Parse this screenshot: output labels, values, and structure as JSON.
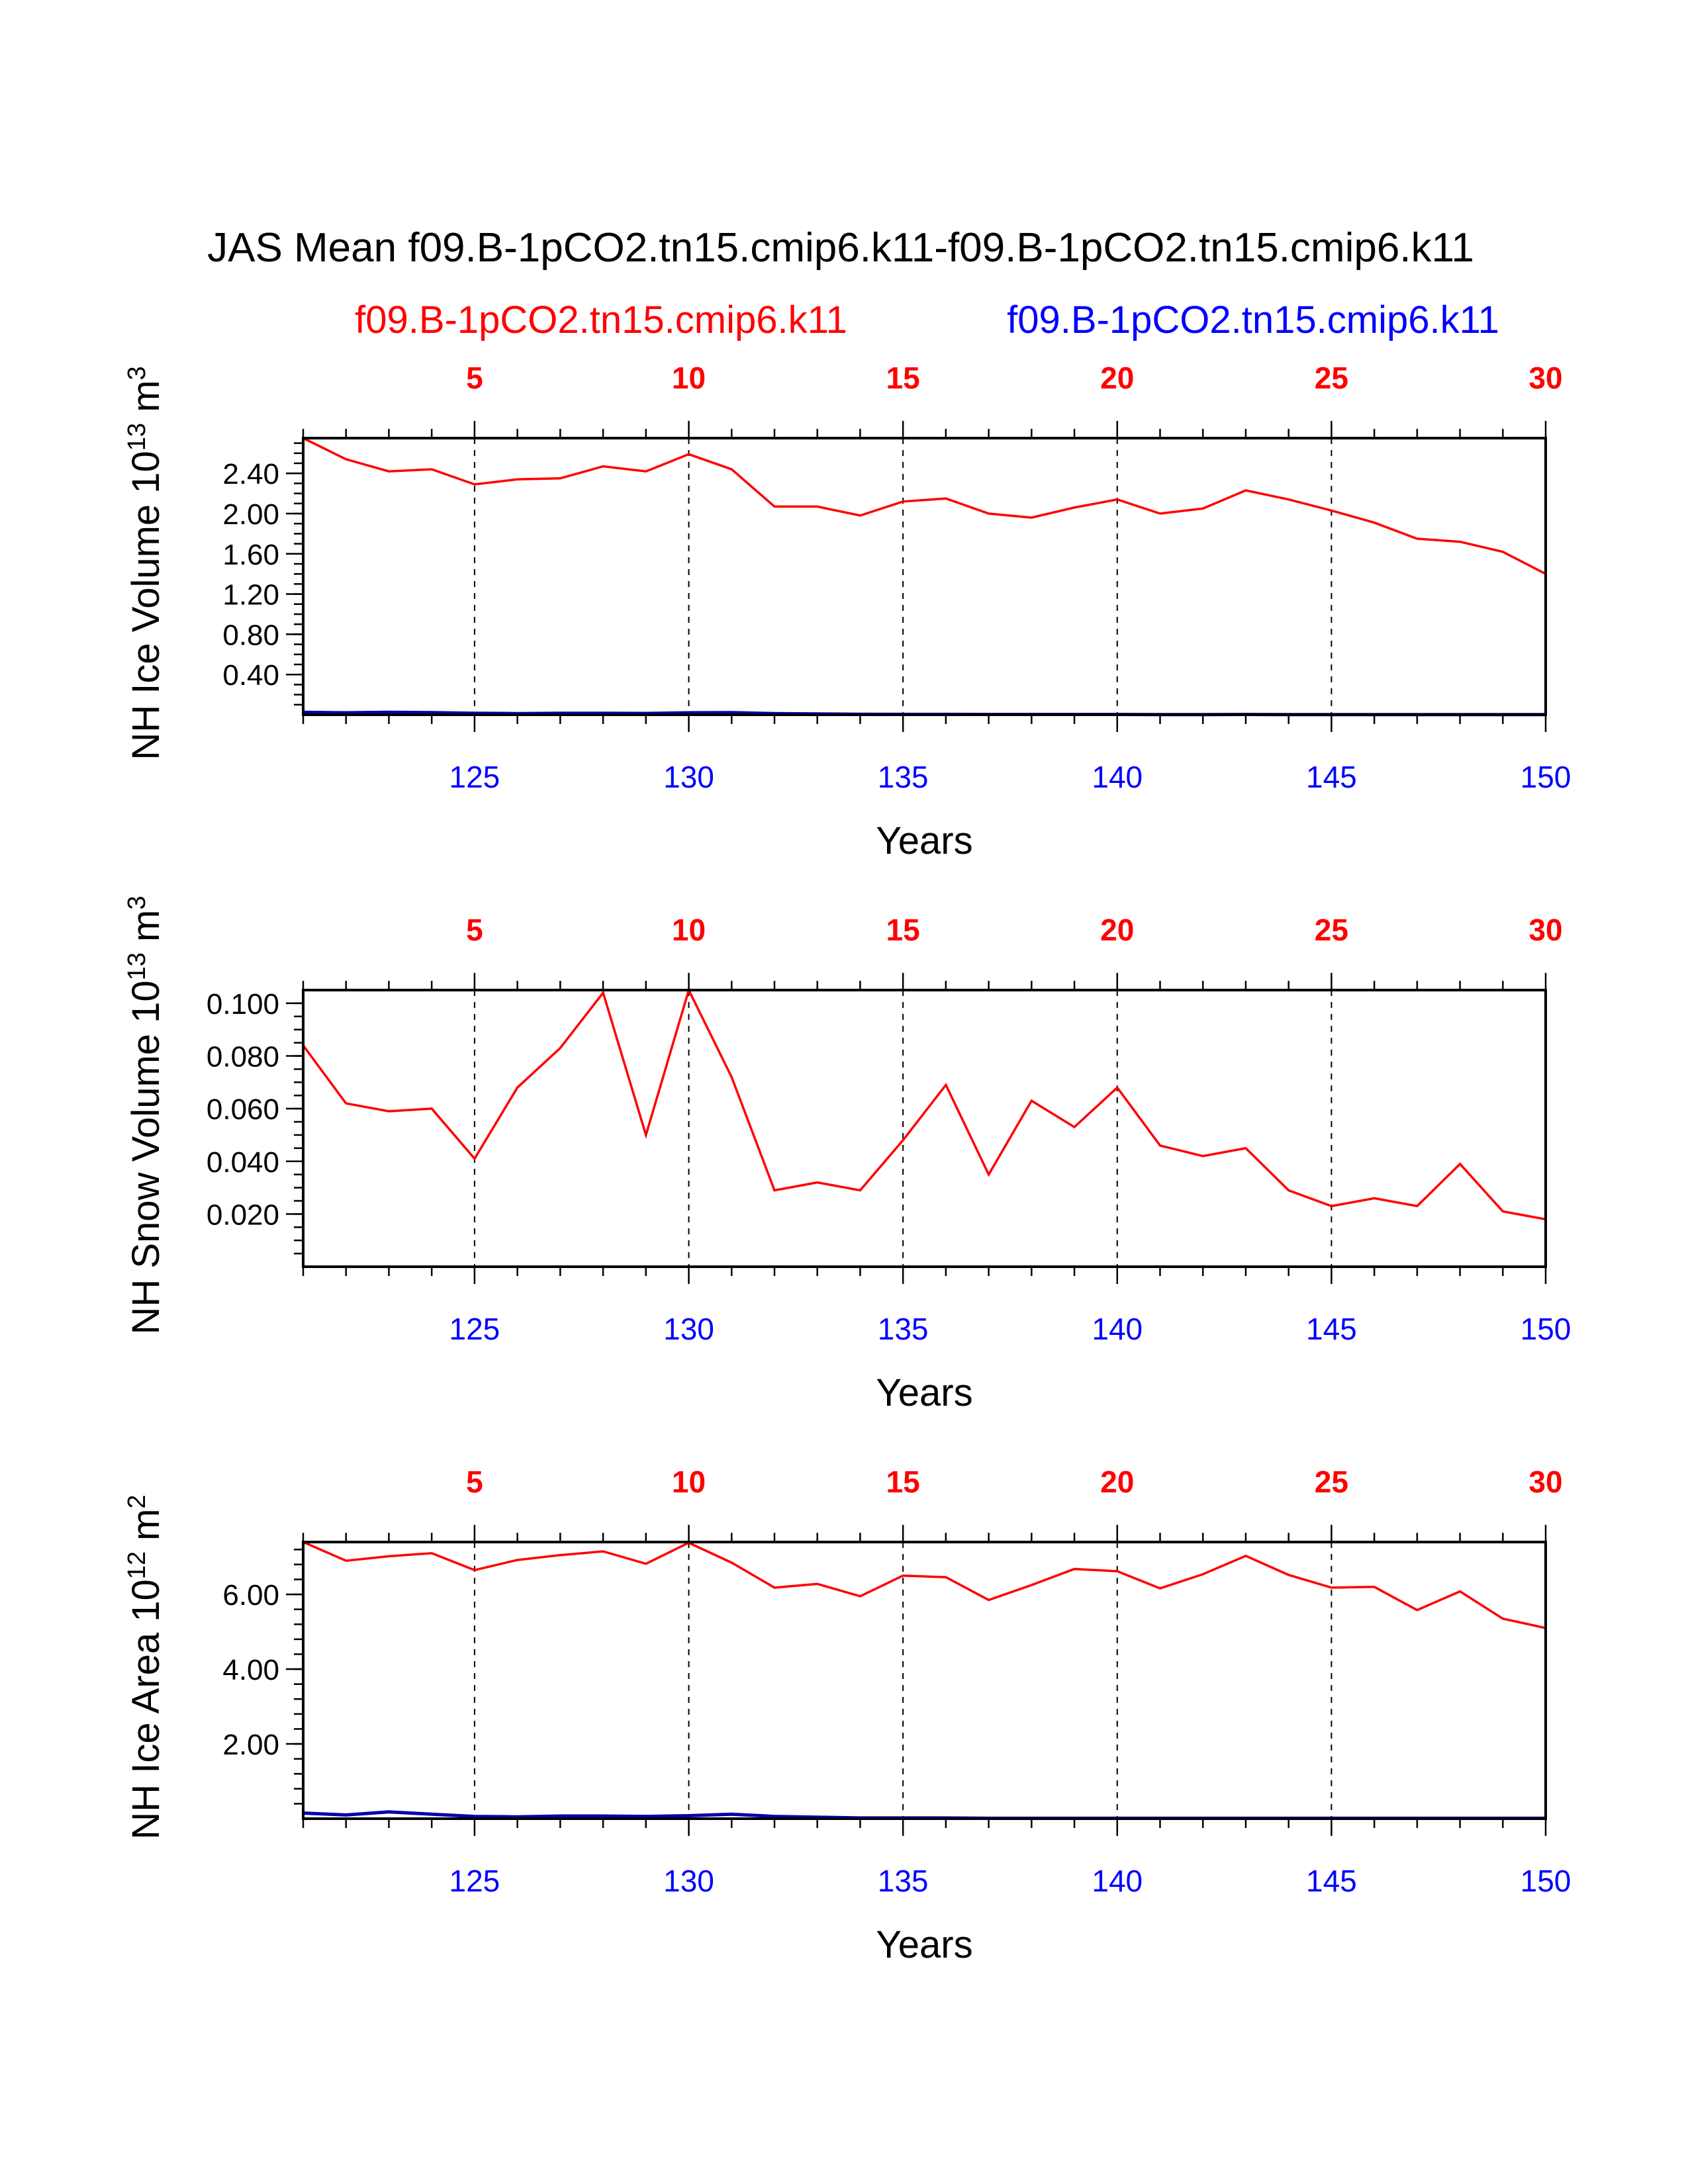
{
  "title": "JAS Mean f09.B-1pCO2.tn15.cmip6.k11-f09.B-1pCO2.tn15.cmip6.k11",
  "legend": {
    "left_label": "f09.B-1pCO2.tn15.cmip6.k11",
    "right_label": "f09.B-1pCO2.tn15.cmip6.k11",
    "left_color": "#ff0000",
    "right_color": "#0000ff"
  },
  "colors": {
    "case_a": "#ff0000",
    "case_b": "#0000b0",
    "axis": "#000000"
  },
  "chart_data": [
    {
      "type": "line",
      "ylabel_main": "NH Ice Volume 10",
      "ylabel_exp": "13",
      "ylabel_unit": " m",
      "ylabel_unit_exp": "3",
      "xlabel": "Years",
      "x_bottom": [
        121,
        122,
        123,
        124,
        125,
        126,
        127,
        128,
        129,
        130,
        131,
        132,
        133,
        134,
        135,
        136,
        137,
        138,
        139,
        140,
        141,
        142,
        143,
        144,
        145,
        146,
        147,
        148,
        149,
        150
      ],
      "x_top": [
        1,
        2,
        3,
        4,
        5,
        6,
        7,
        8,
        9,
        10,
        11,
        12,
        13,
        14,
        15,
        16,
        17,
        18,
        19,
        20,
        21,
        22,
        23,
        24,
        25,
        26,
        27,
        28,
        29,
        30
      ],
      "bottom_ticks": [
        "125",
        "130",
        "135",
        "140",
        "145",
        "150"
      ],
      "top_ticks": [
        "5",
        "10",
        "15",
        "20",
        "25",
        "30"
      ],
      "ylim": [
        0.0,
        2.75
      ],
      "y_major": [
        0.4,
        0.8,
        1.2,
        1.6,
        2.0,
        2.4
      ],
      "y_tick_labels": [
        "0.40",
        "0.80",
        "1.20",
        "1.60",
        "2.00",
        "2.40"
      ],
      "y_minor_step": 0.1,
      "series": [
        {
          "name": "f09.B-1pCO2.tn15.cmip6.k11",
          "color": "#ff0000",
          "values": [
            2.75,
            2.54,
            2.42,
            2.44,
            2.29,
            2.34,
            2.35,
            2.47,
            2.42,
            2.59,
            2.44,
            2.07,
            2.07,
            1.98,
            2.12,
            2.15,
            2.0,
            1.96,
            2.06,
            2.14,
            2.0,
            2.05,
            2.23,
            2.14,
            2.03,
            1.91,
            1.75,
            1.72,
            1.62,
            1.4
          ]
        },
        {
          "name": "f09.B-1pCO2.tn15.cmip6.k11",
          "color": "#0000b0",
          "values": [
            0.025,
            0.02,
            0.025,
            0.022,
            0.015,
            0.012,
            0.015,
            0.015,
            0.013,
            0.02,
            0.022,
            0.012,
            0.008,
            0.005,
            0.004,
            0.004,
            0.003,
            0.003,
            0.003,
            0.003,
            0.002,
            0.002,
            0.003,
            0.002,
            0.002,
            0.002,
            0.002,
            0.002,
            0.002,
            0.002
          ]
        }
      ]
    },
    {
      "type": "line",
      "ylabel_main": "NH Snow Volume 10",
      "ylabel_exp": "13",
      "ylabel_unit": " m",
      "ylabel_unit_exp": "3",
      "xlabel": "Years",
      "x_bottom": [
        121,
        122,
        123,
        124,
        125,
        126,
        127,
        128,
        129,
        130,
        131,
        132,
        133,
        134,
        135,
        136,
        137,
        138,
        139,
        140,
        141,
        142,
        143,
        144,
        145,
        146,
        147,
        148,
        149,
        150
      ],
      "x_top": [
        1,
        2,
        3,
        4,
        5,
        6,
        7,
        8,
        9,
        10,
        11,
        12,
        13,
        14,
        15,
        16,
        17,
        18,
        19,
        20,
        21,
        22,
        23,
        24,
        25,
        26,
        27,
        28,
        29,
        30
      ],
      "bottom_ticks": [
        "125",
        "130",
        "135",
        "140",
        "145",
        "150"
      ],
      "top_ticks": [
        "5",
        "10",
        "15",
        "20",
        "25",
        "30"
      ],
      "ylim": [
        0.0,
        0.105
      ],
      "y_major": [
        0.02,
        0.04,
        0.06,
        0.08,
        0.1
      ],
      "y_tick_labels": [
        "0.020",
        "0.040",
        "0.060",
        "0.080",
        "0.100"
      ],
      "y_minor_step": 0.005,
      "series": [
        {
          "name": "f09.B-1pCO2.tn15.cmip6.k11",
          "color": "#ff0000",
          "values": [
            0.084,
            0.062,
            0.059,
            0.06,
            0.041,
            0.068,
            0.083,
            0.104,
            0.05,
            0.105,
            0.072,
            0.029,
            0.032,
            0.029,
            0.048,
            0.069,
            0.035,
            0.063,
            0.053,
            0.068,
            0.046,
            0.042,
            0.045,
            0.029,
            0.023,
            0.026,
            0.023,
            0.039,
            0.021,
            0.018
          ]
        }
      ]
    },
    {
      "type": "line",
      "ylabel_main": "NH Ice Area 10",
      "ylabel_exp": "12",
      "ylabel_unit": " m",
      "ylabel_unit_exp": "2",
      "xlabel": "Years",
      "x_bottom": [
        121,
        122,
        123,
        124,
        125,
        126,
        127,
        128,
        129,
        130,
        131,
        132,
        133,
        134,
        135,
        136,
        137,
        138,
        139,
        140,
        141,
        142,
        143,
        144,
        145,
        146,
        147,
        148,
        149,
        150
      ],
      "x_top": [
        1,
        2,
        3,
        4,
        5,
        6,
        7,
        8,
        9,
        10,
        11,
        12,
        13,
        14,
        15,
        16,
        17,
        18,
        19,
        20,
        21,
        22,
        23,
        24,
        25,
        26,
        27,
        28,
        29,
        30
      ],
      "bottom_ticks": [
        "125",
        "130",
        "135",
        "140",
        "145",
        "150"
      ],
      "top_ticks": [
        "5",
        "10",
        "15",
        "20",
        "25",
        "30"
      ],
      "ylim": [
        0.0,
        7.4
      ],
      "y_major": [
        2.0,
        4.0,
        6.0
      ],
      "y_tick_labels": [
        "2.00",
        "4.00",
        "6.00"
      ],
      "y_minor_step": 0.4,
      "series": [
        {
          "name": "f09.B-1pCO2.tn15.cmip6.k11",
          "color": "#ff0000",
          "values": [
            7.4,
            6.9,
            7.02,
            7.1,
            6.65,
            6.92,
            7.05,
            7.15,
            6.82,
            7.38,
            6.85,
            6.18,
            6.28,
            5.95,
            6.5,
            6.46,
            5.85,
            6.25,
            6.68,
            6.62,
            6.16,
            6.54,
            7.03,
            6.52,
            6.18,
            6.2,
            5.58,
            6.08,
            5.35,
            5.1
          ]
        },
        {
          "name": "f09.B-1pCO2.tn15.cmip6.k11",
          "color": "#0000b0",
          "values": [
            0.15,
            0.1,
            0.18,
            0.12,
            0.06,
            0.05,
            0.07,
            0.07,
            0.06,
            0.08,
            0.12,
            0.06,
            0.04,
            0.02,
            0.02,
            0.02,
            0.01,
            0.01,
            0.01,
            0.01,
            0.01,
            0.01,
            0.01,
            0.01,
            0.01,
            0.01,
            0.01,
            0.01,
            0.01,
            0.01
          ]
        }
      ]
    }
  ]
}
